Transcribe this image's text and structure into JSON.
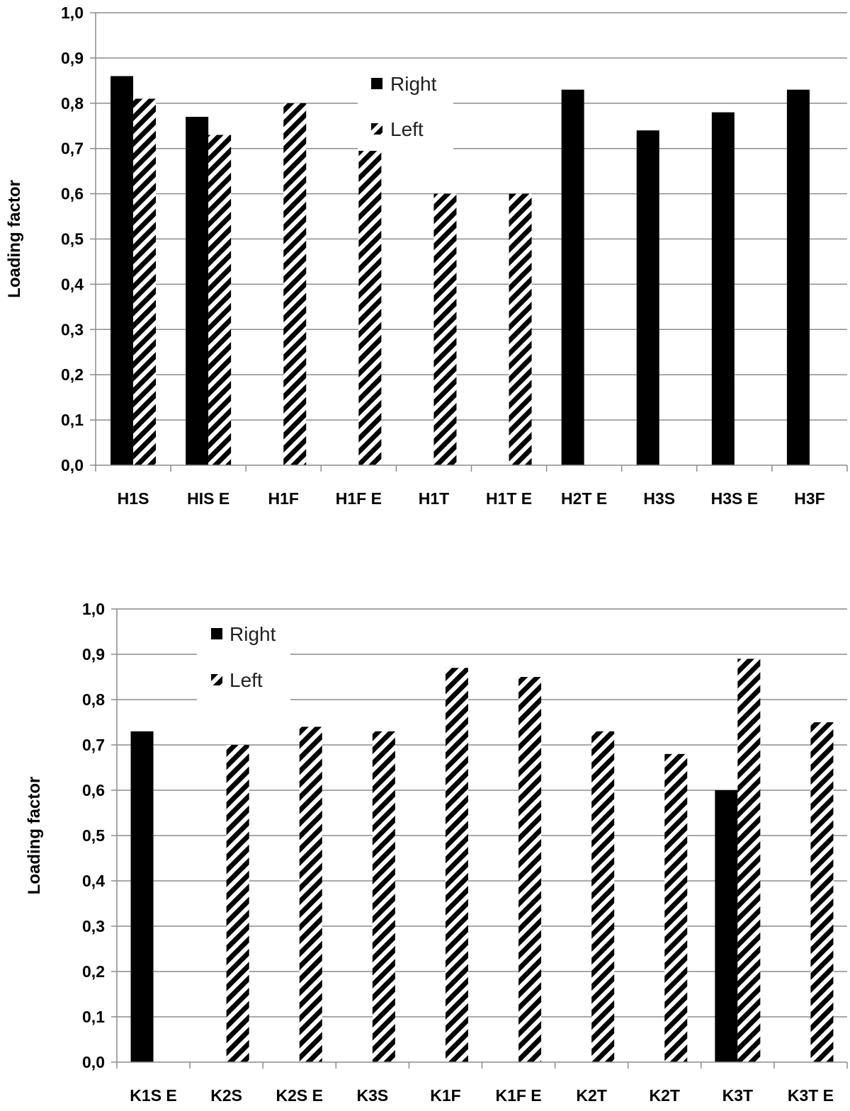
{
  "chart_data": [
    {
      "type": "bar",
      "ylabel": "Loading factor",
      "ylim": [
        0,
        1.0
      ],
      "ytick_step": 0.1,
      "ytick_labels": [
        "0,0",
        "0,1",
        "0,2",
        "0,3",
        "0,4",
        "0,5",
        "0,6",
        "0,7",
        "0,8",
        "0,9",
        "1,0"
      ],
      "grid": true,
      "legend_position": "top-center",
      "categories": [
        "H1S",
        "HIS E",
        "H1F",
        "H1F E",
        "H1T",
        "H1T E",
        "H2T E",
        "H3S",
        "H3S E",
        "H3F"
      ],
      "series": [
        {
          "name": "Right",
          "pattern": "solid",
          "color": "#000000",
          "values": [
            0.86,
            0.77,
            null,
            null,
            null,
            null,
            0.83,
            0.74,
            0.78,
            0.83
          ]
        },
        {
          "name": "Left",
          "pattern": "diagonal-hatch",
          "color": "#000000",
          "values": [
            0.81,
            0.73,
            0.8,
            0.7,
            0.6,
            0.6,
            null,
            null,
            null,
            null
          ]
        }
      ]
    },
    {
      "type": "bar",
      "ylabel": "Loading factor",
      "ylim": [
        0,
        1.0
      ],
      "ytick_step": 0.1,
      "ytick_labels": [
        "0,0",
        "0,1",
        "0,2",
        "0,3",
        "0,4",
        "0,5",
        "0,6",
        "0,7",
        "0,8",
        "0,9",
        "1,0"
      ],
      "grid": true,
      "legend_position": "top-left",
      "categories": [
        "K1S E",
        "K2S",
        "K2S E",
        "K3S",
        "K1F",
        "K1F E",
        "K2T",
        "K2T",
        "K3T",
        "K3T E"
      ],
      "series": [
        {
          "name": "Right",
          "pattern": "solid",
          "color": "#000000",
          "values": [
            0.73,
            null,
            null,
            null,
            null,
            null,
            null,
            null,
            0.6,
            null
          ]
        },
        {
          "name": "Left",
          "pattern": "diagonal-hatch",
          "color": "#000000",
          "values": [
            null,
            0.7,
            0.74,
            0.73,
            0.87,
            0.85,
            0.73,
            0.68,
            0.89,
            0.75
          ]
        }
      ]
    }
  ]
}
